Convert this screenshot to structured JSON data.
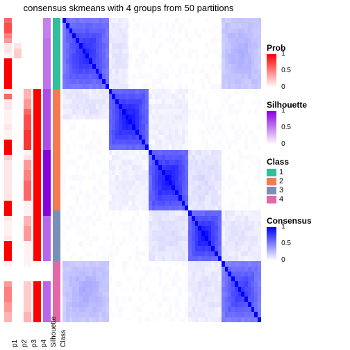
{
  "title": "consensus skmeans with 4 groups from 50 partitions",
  "layout": {
    "track_width": 11,
    "gap": 3,
    "heatmap_size": 60
  },
  "tracks": {
    "labels": [
      "p1",
      "p2",
      "p3",
      "p4",
      "Silhouette",
      "Class"
    ],
    "p1": [
      0.6,
      0.7,
      0.7,
      0.5,
      0.4,
      0.1,
      0.1,
      0.05,
      1,
      1,
      1,
      1,
      1,
      1,
      0.05,
      0.6,
      0.1,
      0.1,
      0.05,
      0.05,
      0.05,
      0.1,
      0.05,
      0.05,
      1,
      1,
      1,
      0.2,
      0.1,
      0.1,
      0.1,
      0.1,
      0.1,
      0.1,
      0.1,
      0.1,
      1,
      1,
      1,
      0.1,
      0.05,
      0.05,
      0.05,
      0.1,
      1,
      1,
      1,
      1,
      0.05,
      0,
      0,
      0,
      0.4,
      0.5,
      0.5,
      0.5,
      0.4,
      0.4,
      0.3,
      0.3
    ],
    "p2": [
      0,
      0,
      0,
      0,
      0,
      0.1,
      0.2,
      0.2,
      0,
      0,
      0,
      0,
      0,
      0,
      0,
      0,
      0,
      0,
      0,
      0,
      0,
      0,
      0,
      0,
      0,
      0,
      0,
      0,
      0,
      0,
      0,
      0,
      0,
      0,
      0,
      0,
      0,
      0,
      0,
      0,
      0,
      0,
      0,
      0,
      0,
      0,
      0,
      0,
      0,
      0,
      0,
      0,
      0,
      0,
      0,
      0,
      0,
      0,
      0,
      0
    ],
    "p3": [
      0,
      0,
      0,
      0,
      0,
      0,
      0,
      0,
      0,
      0,
      0,
      0,
      0,
      0,
      0.3,
      0.3,
      0.4,
      0.4,
      0.6,
      0.7,
      0.7,
      0.7,
      0.8,
      0.8,
      0.8,
      0.8,
      0.05,
      0.1,
      0.4,
      0.4,
      0.5,
      0.5,
      0.6,
      0.6,
      0.6,
      0.6,
      0.05,
      0.05,
      0.05,
      0.3,
      0.3,
      0.4,
      0.4,
      0.4,
      0.05,
      0.05,
      0.05,
      0.05,
      0.05,
      0,
      0,
      0,
      0.2,
      0.2,
      0.2,
      0.2,
      0.2,
      0.2,
      0.3,
      0.3
    ],
    "p4": [
      0,
      0,
      0,
      0,
      0,
      0,
      0,
      0,
      0,
      0,
      0,
      0,
      0,
      0,
      1,
      1,
      1,
      1,
      1,
      1,
      1,
      1,
      1,
      1,
      1,
      1,
      1,
      1,
      1,
      1,
      1,
      1,
      1,
      1,
      1,
      1,
      1,
      1,
      1,
      1,
      1,
      1,
      1,
      1,
      1,
      1,
      1,
      1,
      0,
      0,
      0,
      0,
      1,
      1,
      1,
      1,
      1,
      1,
      1,
      1
    ],
    "silhouette": [
      0.5,
      0.5,
      0.5,
      0.5,
      0.55,
      0.55,
      0.55,
      0.55,
      0.55,
      0.55,
      0.55,
      0.55,
      0.55,
      0.55,
      0.7,
      0.7,
      0.7,
      0.7,
      0.7,
      0.7,
      0.7,
      0.7,
      0.7,
      0.7,
      0.7,
      0.7,
      1,
      1,
      1,
      1,
      1,
      1,
      1,
      1,
      1,
      1,
      1,
      1,
      1,
      0.6,
      0.6,
      0.6,
      0.6,
      0.6,
      0.6,
      0.6,
      0.6,
      0.6,
      0,
      0,
      0,
      0,
      0.6,
      0.6,
      0.6,
      0.6,
      0.6,
      0.6,
      0.6,
      0.6
    ],
    "class": [
      1,
      1,
      1,
      1,
      1,
      1,
      1,
      1,
      1,
      1,
      1,
      1,
      1,
      1,
      2,
      2,
      2,
      2,
      2,
      2,
      2,
      2,
      2,
      2,
      2,
      2,
      2,
      2,
      2,
      2,
      2,
      2,
      2,
      2,
      2,
      2,
      2,
      2,
      3,
      3,
      3,
      3,
      3,
      3,
      3,
      3,
      3,
      3,
      4,
      4,
      4,
      4,
      4,
      4,
      4,
      4,
      4,
      4,
      4,
      4
    ]
  },
  "heatmap": {
    "blocks": [
      {
        "r0": 0,
        "r1": 14,
        "c0": 0,
        "c1": 14,
        "v": 0.9
      },
      {
        "r0": 14,
        "r1": 26,
        "c0": 14,
        "c1": 26,
        "v": 1.0
      },
      {
        "r0": 26,
        "r1": 38,
        "c0": 26,
        "c1": 38,
        "v": 1.0
      },
      {
        "r0": 38,
        "r1": 48,
        "c0": 38,
        "c1": 48,
        "v": 1.0
      },
      {
        "r0": 48,
        "r1": 60,
        "c0": 48,
        "c1": 60,
        "v": 0.85
      },
      {
        "r0": 0,
        "r1": 14,
        "c0": 48,
        "c1": 60,
        "v": 0.35
      },
      {
        "r0": 48,
        "r1": 60,
        "c0": 0,
        "c1": 14,
        "v": 0.35
      },
      {
        "r0": 0,
        "r1": 14,
        "c0": 14,
        "c1": 20,
        "v": 0.12
      },
      {
        "r0": 14,
        "r1": 20,
        "c0": 0,
        "c1": 14,
        "v": 0.12
      },
      {
        "r0": 38,
        "r1": 48,
        "c0": 26,
        "c1": 38,
        "v": 0.15
      },
      {
        "r0": 26,
        "r1": 38,
        "c0": 38,
        "c1": 48,
        "v": 0.15
      },
      {
        "r0": 38,
        "r1": 48,
        "c0": 48,
        "c1": 60,
        "v": 0.12
      },
      {
        "r0": 48,
        "r1": 60,
        "c0": 38,
        "c1": 48,
        "v": 0.12
      },
      {
        "r0": 14,
        "r1": 26,
        "c0": 26,
        "c1": 38,
        "v": 0.08
      },
      {
        "r0": 26,
        "r1": 38,
        "c0": 14,
        "c1": 26,
        "v": 0.08
      }
    ],
    "noise": 0.06
  },
  "colors": {
    "prob_low": "#ffffff",
    "prob_high": "#ff0000",
    "silh_low": "#ffffff",
    "silh_high": "#8800dd",
    "cons_low": "#ffffff",
    "cons_high": "#0000ff",
    "class": {
      "1": "#2fbf9a",
      "2": "#f47a52",
      "3": "#7a8fb8",
      "4": "#e268a9"
    }
  },
  "legends": {
    "prob": {
      "title": "Prob",
      "ticks": [
        "1",
        "0.5",
        "0"
      ]
    },
    "silh": {
      "title": "Silhouette",
      "ticks": [
        "1",
        "0.5",
        "0"
      ]
    },
    "class": {
      "title": "Class",
      "items": [
        "1",
        "2",
        "3",
        "4"
      ]
    },
    "cons": {
      "title": "Consensus",
      "ticks": [
        "1",
        "0.5",
        "0"
      ]
    }
  }
}
